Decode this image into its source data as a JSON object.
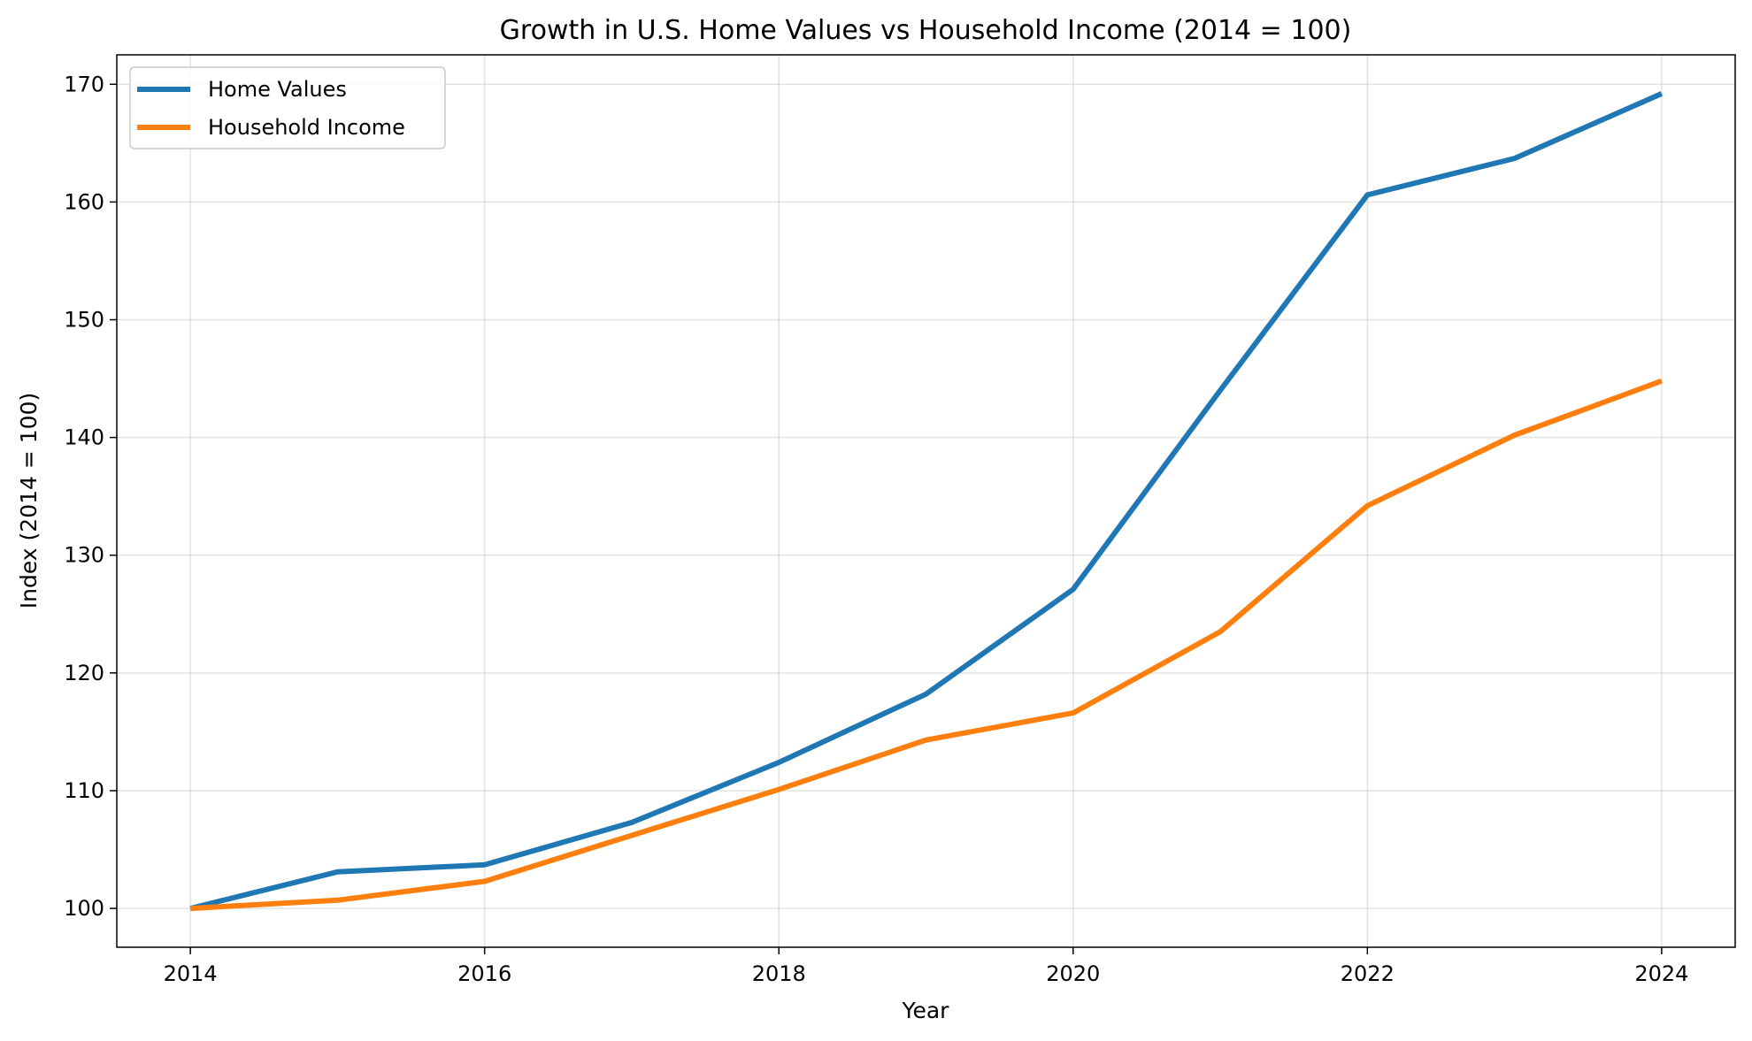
{
  "chart_data": {
    "type": "line",
    "title": "Growth in U.S. Home Values vs Household Income (2014 = 100)",
    "xlabel": "Year",
    "ylabel": "Index (2014 = 100)",
    "x": [
      2014,
      2015,
      2016,
      2017,
      2018,
      2019,
      2020,
      2021,
      2022,
      2023,
      2024
    ],
    "xticks": [
      2014,
      2016,
      2018,
      2020,
      2022,
      2024
    ],
    "yticks": [
      100,
      110,
      120,
      130,
      140,
      150,
      160,
      170
    ],
    "xlim": [
      2013.5,
      2024.5
    ],
    "ylim": [
      96.7,
      172.5
    ],
    "grid": true,
    "legend": "top-left",
    "series": [
      {
        "name": "Home Values",
        "color": "#1f77b4",
        "values": [
          100,
          103.1,
          103.7,
          107.3,
          112.4,
          118.2,
          127.1,
          144.0,
          160.6,
          163.7,
          169.2
        ]
      },
      {
        "name": "Household Income",
        "color": "#ff7f0e",
        "values": [
          100,
          100.7,
          102.3,
          106.2,
          110.1,
          114.3,
          116.6,
          123.5,
          134.2,
          140.2,
          144.8
        ]
      }
    ]
  }
}
